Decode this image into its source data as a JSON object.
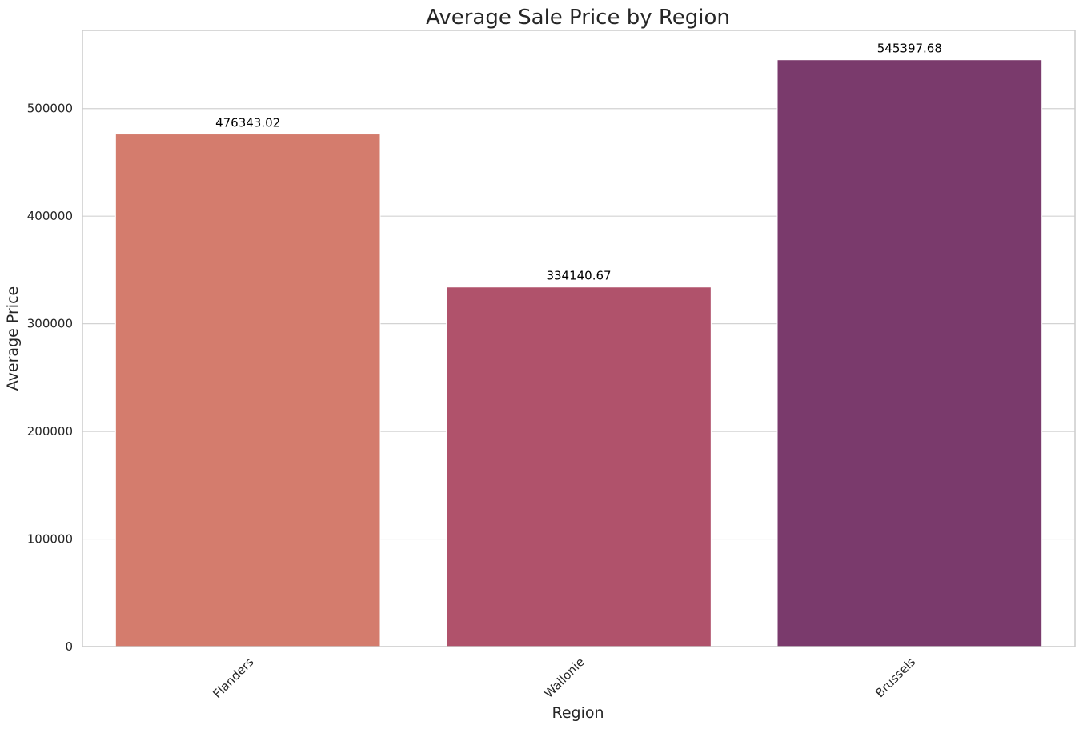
{
  "chart_data": {
    "type": "bar",
    "title": "Average Sale Price by Region",
    "xlabel": "Region",
    "ylabel": "Average Price",
    "categories": [
      "Flanders",
      "Wallonie",
      "Brussels"
    ],
    "values": [
      476343.02,
      334140.67,
      545397.68
    ],
    "data_labels": [
      "476343.02",
      "334140.67",
      "545397.68"
    ],
    "colors": [
      "#d47c6d",
      "#b0526b",
      "#7a3a6c"
    ],
    "ylim": [
      0,
      572700
    ],
    "yticks": [
      0,
      100000,
      200000,
      300000,
      400000,
      500000
    ],
    "ytick_labels": [
      "0",
      "100000",
      "200000",
      "300000",
      "400000",
      "500000"
    ],
    "grid": "horizontal",
    "legend": "none"
  }
}
